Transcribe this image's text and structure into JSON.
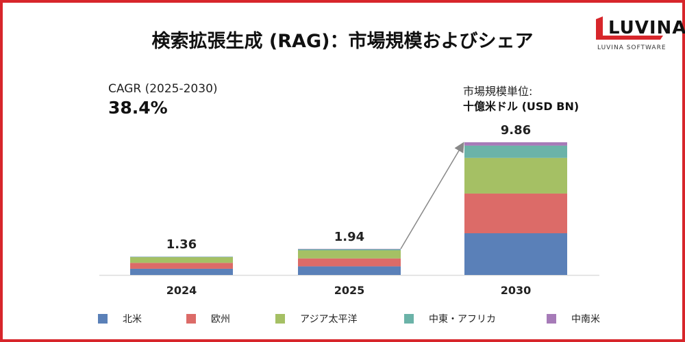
{
  "title": "検索拡張生成 (RAG)：市場規模およびシェア",
  "cagr": {
    "label": "CAGR (2025-2030)",
    "value": "38.4%"
  },
  "unit": {
    "label": "市場規模単位:",
    "value": "十億米ドル (USD BN)"
  },
  "logo": {
    "word": "LUVINA",
    "sub": "LUVINA SOFTWARE"
  },
  "chart_data": {
    "type": "bar",
    "stacked": true,
    "categories": [
      "2024",
      "2025",
      "2030"
    ],
    "totals": [
      "1.36",
      "1.94",
      "9.86"
    ],
    "series": [
      {
        "name": "北米",
        "color": "#5a80b8",
        "values": [
          0.46,
          0.64,
          3.1
        ]
      },
      {
        "name": "欧州",
        "color": "#dc6b68",
        "values": [
          0.44,
          0.59,
          2.95
        ]
      },
      {
        "name": "アジア太平洋",
        "color": "#a5c064",
        "values": [
          0.42,
          0.6,
          2.65
        ]
      },
      {
        "name": "中東・アフリカ",
        "color": "#6bb3a8",
        "values": [
          0.03,
          0.08,
          0.91
        ]
      },
      {
        "name": "中南米",
        "color": "#a67bb8",
        "values": [
          0.01,
          0.03,
          0.25
        ]
      }
    ],
    "ylim": [
      0,
      9.86
    ],
    "grid": false,
    "legend": "bottom",
    "annotation": "arrow from 2025 to 2030"
  }
}
